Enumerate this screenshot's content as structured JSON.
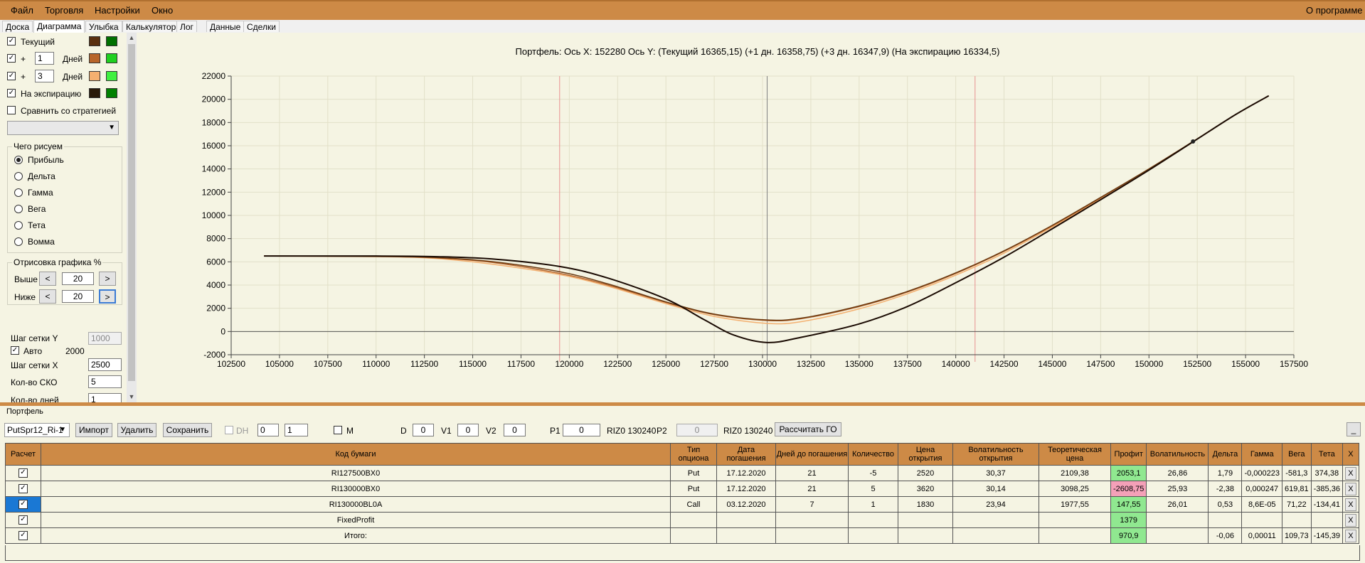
{
  "menu": {
    "file": "Файл",
    "trade": "Торговля",
    "settings": "Настройки",
    "window": "Окно",
    "about": "О программе"
  },
  "tabs": [
    "Доска",
    "Диаграмма",
    "Улыбка",
    "Калькулятор",
    "Лог",
    "Данные",
    "Сделки"
  ],
  "left": {
    "current": "Текущий",
    "plus": "+",
    "days": "Дней",
    "d1": "1",
    "d3": "3",
    "expiry": "На экспирацию",
    "compare": "Сравнить со стратегией",
    "what_title": "Чего рисуем",
    "radios": [
      "Прибыль",
      "Дельта",
      "Гамма",
      "Вега",
      "Тета",
      "Вомма"
    ],
    "draw_title": "Отрисовка графика %",
    "above": "Выше",
    "below": "Ниже",
    "above_val": "20",
    "below_val": "20",
    "lt": "<",
    "gt": ">",
    "grid_y": "Шаг сетки Y",
    "grid_y_val": "1000",
    "auto": "Авто",
    "auto_val": "2000",
    "grid_x": "Шаг сетки X",
    "grid_x_val": "2500",
    "sko": "Кол-во СКО",
    "sko_val": "5",
    "days_cut": "Кол-во дней",
    "days_cut_val": "1"
  },
  "colors": {
    "current1": "#5a3010",
    "current2": "#007000",
    "d1a": "#b8652a",
    "d1b": "#20d020",
    "d3a": "#f4b070",
    "d3b": "#40f040",
    "exp1": "#2a1a0a",
    "exp2": "#008000"
  },
  "chart_data": {
    "type": "line",
    "title": "Портфель: Ось X:  152280 Ось Y:  (Текущий 16365,15)  (+1 дн. 16358,75)  (+3 дн. 16347,9)  (На экспирацию 16334,5)",
    "xlim": [
      102500,
      157500
    ],
    "ylim": [
      -2000,
      22000
    ],
    "x_ticks": [
      "102500",
      "105000",
      "107500",
      "110000",
      "112500",
      "115000",
      "117500",
      "120000",
      "122500",
      "125000",
      "127500",
      "130000",
      "132500",
      "135000",
      "137500",
      "140000",
      "142500",
      "145000",
      "147500",
      "150000",
      "152500",
      "155000",
      "157500"
    ],
    "y_ticks": [
      "-2000",
      "0",
      "2000",
      "4000",
      "6000",
      "8000",
      "10000",
      "12000",
      "14000",
      "16000",
      "18000",
      "20000",
      "22000"
    ],
    "vlines": [
      {
        "x": 119500,
        "color": "#e89090"
      },
      {
        "x": 130240,
        "color": "#808080"
      },
      {
        "x": 141000,
        "color": "#e89090"
      }
    ],
    "marker": {
      "x": 152280,
      "y": 16365
    },
    "series": [
      {
        "color": "#f4b070",
        "points": [
          [
            104200,
            6500
          ],
          [
            110000,
            6450
          ],
          [
            113000,
            6300
          ],
          [
            116000,
            5800
          ],
          [
            119500,
            4900
          ],
          [
            122000,
            3900
          ],
          [
            125000,
            2400
          ],
          [
            127500,
            1300
          ],
          [
            130200,
            700
          ],
          [
            132000,
            850
          ],
          [
            135000,
            1950
          ],
          [
            137500,
            3250
          ],
          [
            140000,
            4850
          ],
          [
            142500,
            6750
          ],
          [
            145000,
            9000
          ],
          [
            147500,
            11400
          ],
          [
            150000,
            13900
          ],
          [
            152280,
            16348
          ],
          [
            154500,
            18700
          ],
          [
            156200,
            20300
          ]
        ]
      },
      {
        "color": "#b8652a",
        "points": [
          [
            104200,
            6500
          ],
          [
            110000,
            6460
          ],
          [
            113000,
            6350
          ],
          [
            116000,
            5950
          ],
          [
            119500,
            5000
          ],
          [
            122000,
            4000
          ],
          [
            125000,
            2500
          ],
          [
            127500,
            1450
          ],
          [
            130200,
            950
          ],
          [
            132000,
            1100
          ],
          [
            135000,
            2150
          ],
          [
            137500,
            3400
          ],
          [
            140000,
            5000
          ],
          [
            142500,
            6900
          ],
          [
            145000,
            9100
          ],
          [
            147500,
            11500
          ],
          [
            150000,
            14000
          ],
          [
            152280,
            16359
          ],
          [
            154500,
            18700
          ],
          [
            156200,
            20300
          ]
        ]
      },
      {
        "color": "#6a3a12",
        "points": [
          [
            104200,
            6500
          ],
          [
            110000,
            6470
          ],
          [
            113000,
            6380
          ],
          [
            116000,
            6020
          ],
          [
            119500,
            5150
          ],
          [
            122000,
            4100
          ],
          [
            125000,
            2550
          ],
          [
            127500,
            1500
          ],
          [
            130200,
            1000
          ],
          [
            132000,
            1150
          ],
          [
            135000,
            2200
          ],
          [
            137500,
            3450
          ],
          [
            140000,
            5050
          ],
          [
            142500,
            6950
          ],
          [
            145000,
            9150
          ],
          [
            147500,
            11550
          ],
          [
            150000,
            14000
          ],
          [
            152280,
            16365
          ],
          [
            154500,
            18700
          ],
          [
            156200,
            20300
          ]
        ]
      },
      {
        "color": "#1a0a02",
        "points": [
          [
            104200,
            6500
          ],
          [
            110000,
            6500
          ],
          [
            113000,
            6450
          ],
          [
            116000,
            6250
          ],
          [
            119500,
            5600
          ],
          [
            122000,
            4600
          ],
          [
            125000,
            2800
          ],
          [
            127000,
            1000
          ],
          [
            128500,
            -300
          ],
          [
            130240,
            -950
          ],
          [
            132000,
            -500
          ],
          [
            135000,
            650
          ],
          [
            137500,
            2150
          ],
          [
            140000,
            4200
          ],
          [
            142500,
            6400
          ],
          [
            145000,
            8850
          ],
          [
            147500,
            11350
          ],
          [
            150000,
            13900
          ],
          [
            152280,
            16334
          ],
          [
            154500,
            18700
          ],
          [
            156200,
            20300
          ]
        ]
      }
    ]
  },
  "bottom": {
    "panel_title": "Портфель",
    "portfolio": "PutSpr12_Ri-1",
    "import": "Импорт",
    "delete": "Удалить",
    "save": "Сохранить",
    "dh": "DH",
    "dh_v1": "0",
    "dh_v2": "1",
    "m": "M",
    "d": "D",
    "d_val": "0",
    "v1": "V1",
    "v1_val": "0",
    "v2": "V2",
    "v2_val": "0",
    "p1": "P1",
    "p1_val": "0",
    "riz1": "RIZ0 130240",
    "p2": "P2",
    "p2_val": "0",
    "riz2": "RIZ0 130240",
    "calc_go": "Рассчитать ГО",
    "minimize": "_"
  },
  "table": {
    "headers": [
      "Расчет",
      "Код бумаги",
      "Тип опциона",
      "Дата погашения",
      "Дней до погашения",
      "Количество",
      "Цена открытия",
      "Волатильность открытия",
      "Теоретическая цена",
      "Профит",
      "Волатильность",
      "Дельта",
      "Гамма",
      "Вега",
      "Тета",
      "X"
    ],
    "rows": [
      {
        "code": "RI127500BX0",
        "type": "Put",
        "date": "17.12.2020",
        "days": "21",
        "qty": "-5",
        "price": "2520",
        "vol_open": "30,37",
        "theo": "2109,38",
        "profit": "2053,1",
        "vol": "26,86",
        "delta": "1,79",
        "gamma": "-0,000223",
        "vega": "-581,3",
        "theta": "374,38",
        "x": "X"
      },
      {
        "code": "RI130000BX0",
        "type": "Put",
        "date": "17.12.2020",
        "days": "21",
        "qty": "5",
        "price": "3620",
        "vol_open": "30,14",
        "theo": "3098,25",
        "profit": "-2608,75",
        "vol": "25,93",
        "delta": "-2,38",
        "gamma": "0,000247",
        "vega": "619,81",
        "theta": "-385,36",
        "x": "X"
      },
      {
        "code": "RI130000BL0A",
        "type": "Call",
        "date": "03.12.2020",
        "days": "7",
        "qty": "1",
        "price": "1830",
        "vol_open": "23,94",
        "theo": "1977,55",
        "profit": "147,55",
        "vol": "26,01",
        "delta": "0,53",
        "gamma": "8,6E-05",
        "vega": "71,22",
        "theta": "-134,41",
        "x": "X"
      },
      {
        "code": "FixedProfit",
        "type": "",
        "date": "",
        "days": "",
        "qty": "",
        "price": "",
        "vol_open": "",
        "theo": "",
        "profit": "1379",
        "vol": "",
        "delta": "",
        "gamma": "",
        "vega": "",
        "theta": "",
        "x": "X"
      },
      {
        "code": "Итого:",
        "type": "",
        "date": "",
        "days": "",
        "qty": "",
        "price": "",
        "vol_open": "",
        "theo": "",
        "profit": "970,9",
        "vol": "",
        "delta": "-0,06",
        "gamma": "0,00011",
        "vega": "109,73",
        "theta": "-145,39",
        "x": "X"
      }
    ]
  }
}
